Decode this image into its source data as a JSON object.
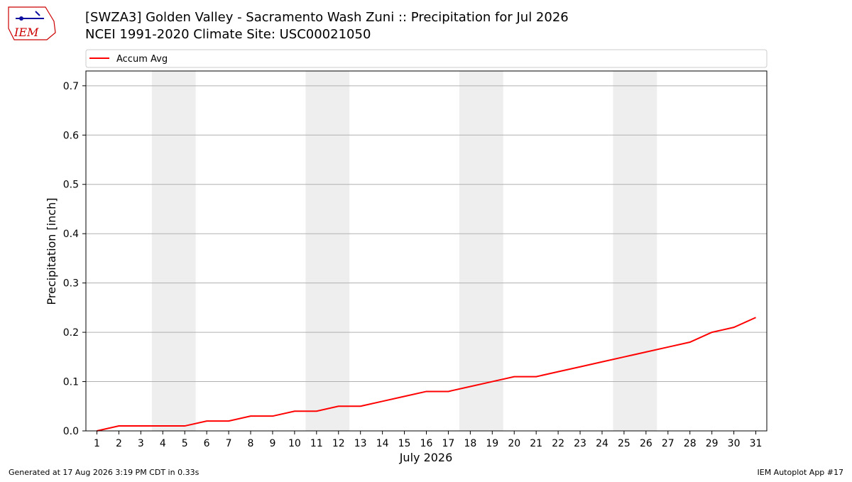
{
  "chart_data": {
    "type": "line",
    "title": "[SWZA3] Golden Valley - Sacramento Wash Zuni :: Precipitation for Jul 2026",
    "subtitle": "NCEI 1991-2020 Climate Site: USC00021050",
    "x_label": "July 2026",
    "y_label": "Precipitation [inch]",
    "x": [
      1,
      2,
      3,
      4,
      5,
      6,
      7,
      8,
      9,
      10,
      11,
      12,
      13,
      14,
      15,
      16,
      17,
      18,
      19,
      20,
      21,
      22,
      23,
      24,
      25,
      26,
      27,
      28,
      29,
      30,
      31
    ],
    "series": [
      {
        "name": "Accum Avg",
        "color": "#ff0000",
        "values": [
          0,
          0.01,
          0.01,
          0.01,
          0.01,
          0.02,
          0.02,
          0.03,
          0.03,
          0.04,
          0.04,
          0.05,
          0.05,
          0.06,
          0.07,
          0.08,
          0.08,
          0.09,
          0.1,
          0.11,
          0.11,
          0.12,
          0.13,
          0.14,
          0.15,
          0.16,
          0.17,
          0.18,
          0.2,
          0.21,
          0.23
        ]
      }
    ],
    "xlim": [
      0.5,
      31.5
    ],
    "xticks": [
      1,
      2,
      3,
      4,
      5,
      6,
      7,
      8,
      9,
      10,
      11,
      12,
      13,
      14,
      15,
      16,
      17,
      18,
      19,
      20,
      21,
      22,
      23,
      24,
      25,
      26,
      27,
      28,
      29,
      30,
      31
    ],
    "ylim": [
      0,
      0.73
    ],
    "yticks": [
      {
        "value": 0,
        "label": "0.0"
      },
      0.1,
      0.2,
      0.3,
      0.4,
      0.5,
      0.6,
      0.7
    ],
    "grid": true,
    "shaded_spans": [
      [
        3.5,
        5.5
      ],
      [
        10.5,
        12.5
      ],
      [
        17.5,
        19.5
      ],
      [
        24.5,
        26.5
      ]
    ],
    "shade_color": "#eeeeee"
  },
  "logo_text": "IEM",
  "footer_left": "Generated at 17 Aug 2026 3:19 PM CDT in 0.33s",
  "footer_right": "IEM Autoplot App #17"
}
